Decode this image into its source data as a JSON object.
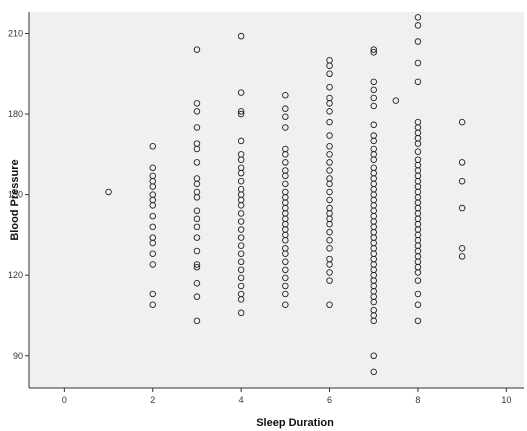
{
  "chart_data": {
    "type": "scatter",
    "title": "",
    "xlabel": "Sleep Duration",
    "ylabel": "Blood Pressure",
    "xlim": [
      -0.8,
      10.4
    ],
    "ylim": [
      78,
      218
    ],
    "x_ticks": [
      0,
      2,
      4,
      6,
      8,
      10
    ],
    "y_ticks": [
      90,
      120,
      150,
      180,
      210
    ],
    "grid": false,
    "legend": "none",
    "background": "#f0f0f0",
    "marker_color": "#222222",
    "points": [
      {
        "x": 1,
        "y": 151
      },
      {
        "x": 2,
        "y": 168
      },
      {
        "x": 2,
        "y": 160
      },
      {
        "x": 2,
        "y": 157
      },
      {
        "x": 2,
        "y": 155
      },
      {
        "x": 2,
        "y": 153
      },
      {
        "x": 2,
        "y": 150
      },
      {
        "x": 2,
        "y": 148
      },
      {
        "x": 2,
        "y": 146
      },
      {
        "x": 2,
        "y": 142
      },
      {
        "x": 2,
        "y": 138
      },
      {
        "x": 2,
        "y": 134
      },
      {
        "x": 2,
        "y": 132
      },
      {
        "x": 2,
        "y": 128
      },
      {
        "x": 2,
        "y": 124
      },
      {
        "x": 2,
        "y": 113
      },
      {
        "x": 2,
        "y": 109
      },
      {
        "x": 3,
        "y": 204
      },
      {
        "x": 3,
        "y": 184
      },
      {
        "x": 3,
        "y": 181
      },
      {
        "x": 3,
        "y": 175
      },
      {
        "x": 3,
        "y": 169
      },
      {
        "x": 3,
        "y": 167
      },
      {
        "x": 3,
        "y": 162
      },
      {
        "x": 3,
        "y": 156
      },
      {
        "x": 3,
        "y": 154
      },
      {
        "x": 3,
        "y": 151
      },
      {
        "x": 3,
        "y": 149
      },
      {
        "x": 3,
        "y": 144
      },
      {
        "x": 3,
        "y": 141
      },
      {
        "x": 3,
        "y": 138
      },
      {
        "x": 3,
        "y": 134
      },
      {
        "x": 3,
        "y": 129
      },
      {
        "x": 3,
        "y": 124
      },
      {
        "x": 3,
        "y": 123
      },
      {
        "x": 3,
        "y": 117
      },
      {
        "x": 3,
        "y": 112
      },
      {
        "x": 3,
        "y": 103
      },
      {
        "x": 4,
        "y": 209
      },
      {
        "x": 4,
        "y": 188
      },
      {
        "x": 4,
        "y": 181
      },
      {
        "x": 4,
        "y": 180
      },
      {
        "x": 4,
        "y": 170
      },
      {
        "x": 4,
        "y": 165
      },
      {
        "x": 4,
        "y": 163
      },
      {
        "x": 4,
        "y": 160
      },
      {
        "x": 4,
        "y": 158
      },
      {
        "x": 4,
        "y": 155
      },
      {
        "x": 4,
        "y": 152
      },
      {
        "x": 4,
        "y": 150
      },
      {
        "x": 4,
        "y": 148
      },
      {
        "x": 4,
        "y": 146
      },
      {
        "x": 4,
        "y": 143
      },
      {
        "x": 4,
        "y": 140
      },
      {
        "x": 4,
        "y": 137
      },
      {
        "x": 4,
        "y": 134
      },
      {
        "x": 4,
        "y": 131
      },
      {
        "x": 4,
        "y": 128
      },
      {
        "x": 4,
        "y": 125
      },
      {
        "x": 4,
        "y": 122
      },
      {
        "x": 4,
        "y": 119
      },
      {
        "x": 4,
        "y": 116
      },
      {
        "x": 4,
        "y": 113
      },
      {
        "x": 4,
        "y": 111
      },
      {
        "x": 4,
        "y": 106
      },
      {
        "x": 5,
        "y": 187
      },
      {
        "x": 5,
        "y": 182
      },
      {
        "x": 5,
        "y": 179
      },
      {
        "x": 5,
        "y": 175
      },
      {
        "x": 5,
        "y": 167
      },
      {
        "x": 5,
        "y": 165
      },
      {
        "x": 5,
        "y": 162
      },
      {
        "x": 5,
        "y": 159
      },
      {
        "x": 5,
        "y": 157
      },
      {
        "x": 5,
        "y": 154
      },
      {
        "x": 5,
        "y": 151
      },
      {
        "x": 5,
        "y": 149
      },
      {
        "x": 5,
        "y": 147
      },
      {
        "x": 5,
        "y": 145
      },
      {
        "x": 5,
        "y": 143
      },
      {
        "x": 5,
        "y": 141
      },
      {
        "x": 5,
        "y": 139
      },
      {
        "x": 5,
        "y": 137
      },
      {
        "x": 5,
        "y": 135
      },
      {
        "x": 5,
        "y": 133
      },
      {
        "x": 5,
        "y": 130
      },
      {
        "x": 5,
        "y": 128
      },
      {
        "x": 5,
        "y": 125
      },
      {
        "x": 5,
        "y": 122
      },
      {
        "x": 5,
        "y": 119
      },
      {
        "x": 5,
        "y": 116
      },
      {
        "x": 5,
        "y": 113
      },
      {
        "x": 5,
        "y": 109
      },
      {
        "x": 6,
        "y": 200
      },
      {
        "x": 6,
        "y": 198
      },
      {
        "x": 6,
        "y": 195
      },
      {
        "x": 6,
        "y": 190
      },
      {
        "x": 6,
        "y": 186
      },
      {
        "x": 6,
        "y": 184
      },
      {
        "x": 6,
        "y": 181
      },
      {
        "x": 6,
        "y": 177
      },
      {
        "x": 6,
        "y": 172
      },
      {
        "x": 6,
        "y": 168
      },
      {
        "x": 6,
        "y": 165
      },
      {
        "x": 6,
        "y": 162
      },
      {
        "x": 6,
        "y": 159
      },
      {
        "x": 6,
        "y": 156
      },
      {
        "x": 6,
        "y": 154
      },
      {
        "x": 6,
        "y": 151
      },
      {
        "x": 6,
        "y": 148
      },
      {
        "x": 6,
        "y": 145
      },
      {
        "x": 6,
        "y": 143
      },
      {
        "x": 6,
        "y": 141
      },
      {
        "x": 6,
        "y": 139
      },
      {
        "x": 6,
        "y": 136
      },
      {
        "x": 6,
        "y": 133
      },
      {
        "x": 6,
        "y": 130
      },
      {
        "x": 6,
        "y": 126
      },
      {
        "x": 6,
        "y": 124
      },
      {
        "x": 6,
        "y": 121
      },
      {
        "x": 6,
        "y": 118
      },
      {
        "x": 6,
        "y": 109
      },
      {
        "x": 7,
        "y": 204
      },
      {
        "x": 7,
        "y": 203
      },
      {
        "x": 7,
        "y": 192
      },
      {
        "x": 7,
        "y": 189
      },
      {
        "x": 7,
        "y": 186
      },
      {
        "x": 7,
        "y": 183
      },
      {
        "x": 7,
        "y": 176
      },
      {
        "x": 7,
        "y": 172
      },
      {
        "x": 7,
        "y": 170
      },
      {
        "x": 7,
        "y": 167
      },
      {
        "x": 7,
        "y": 165
      },
      {
        "x": 7,
        "y": 163
      },
      {
        "x": 7,
        "y": 160
      },
      {
        "x": 7,
        "y": 158
      },
      {
        "x": 7,
        "y": 156
      },
      {
        "x": 7,
        "y": 154
      },
      {
        "x": 7,
        "y": 152
      },
      {
        "x": 7,
        "y": 150
      },
      {
        "x": 7,
        "y": 148
      },
      {
        "x": 7,
        "y": 146
      },
      {
        "x": 7,
        "y": 144
      },
      {
        "x": 7,
        "y": 142
      },
      {
        "x": 7,
        "y": 140
      },
      {
        "x": 7,
        "y": 138
      },
      {
        "x": 7,
        "y": 136
      },
      {
        "x": 7,
        "y": 134
      },
      {
        "x": 7,
        "y": 132
      },
      {
        "x": 7,
        "y": 130
      },
      {
        "x": 7,
        "y": 128
      },
      {
        "x": 7,
        "y": 126
      },
      {
        "x": 7,
        "y": 124
      },
      {
        "x": 7,
        "y": 122
      },
      {
        "x": 7,
        "y": 120
      },
      {
        "x": 7,
        "y": 118
      },
      {
        "x": 7,
        "y": 116
      },
      {
        "x": 7,
        "y": 114
      },
      {
        "x": 7,
        "y": 112
      },
      {
        "x": 7,
        "y": 110
      },
      {
        "x": 7,
        "y": 107
      },
      {
        "x": 7,
        "y": 105
      },
      {
        "x": 7,
        "y": 103
      },
      {
        "x": 7,
        "y": 90
      },
      {
        "x": 7,
        "y": 84
      },
      {
        "x": 7.5,
        "y": 185
      },
      {
        "x": 8,
        "y": 216
      },
      {
        "x": 8,
        "y": 213
      },
      {
        "x": 8,
        "y": 207
      },
      {
        "x": 8,
        "y": 199
      },
      {
        "x": 8,
        "y": 192
      },
      {
        "x": 8,
        "y": 177
      },
      {
        "x": 8,
        "y": 175
      },
      {
        "x": 8,
        "y": 173
      },
      {
        "x": 8,
        "y": 171
      },
      {
        "x": 8,
        "y": 169
      },
      {
        "x": 8,
        "y": 166
      },
      {
        "x": 8,
        "y": 163
      },
      {
        "x": 8,
        "y": 161
      },
      {
        "x": 8,
        "y": 159
      },
      {
        "x": 8,
        "y": 157
      },
      {
        "x": 8,
        "y": 155
      },
      {
        "x": 8,
        "y": 153
      },
      {
        "x": 8,
        "y": 151
      },
      {
        "x": 8,
        "y": 149
      },
      {
        "x": 8,
        "y": 147
      },
      {
        "x": 8,
        "y": 145
      },
      {
        "x": 8,
        "y": 143
      },
      {
        "x": 8,
        "y": 141
      },
      {
        "x": 8,
        "y": 139
      },
      {
        "x": 8,
        "y": 137
      },
      {
        "x": 8,
        "y": 135
      },
      {
        "x": 8,
        "y": 133
      },
      {
        "x": 8,
        "y": 131
      },
      {
        "x": 8,
        "y": 129
      },
      {
        "x": 8,
        "y": 127
      },
      {
        "x": 8,
        "y": 125
      },
      {
        "x": 8,
        "y": 123
      },
      {
        "x": 8,
        "y": 121
      },
      {
        "x": 8,
        "y": 118
      },
      {
        "x": 8,
        "y": 113
      },
      {
        "x": 8,
        "y": 109
      },
      {
        "x": 8,
        "y": 103
      },
      {
        "x": 9,
        "y": 177
      },
      {
        "x": 9,
        "y": 162
      },
      {
        "x": 9,
        "y": 155
      },
      {
        "x": 9,
        "y": 145
      },
      {
        "x": 9,
        "y": 130
      },
      {
        "x": 9,
        "y": 127
      }
    ]
  }
}
